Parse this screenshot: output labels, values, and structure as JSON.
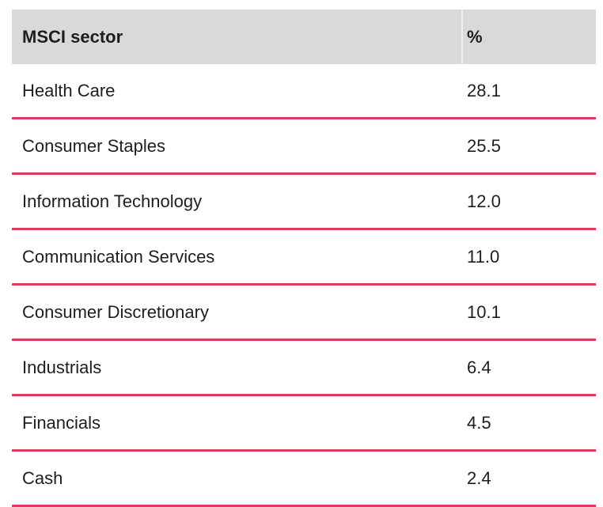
{
  "table": {
    "header": {
      "sector": "MSCI sector",
      "pct": "%"
    },
    "rows": [
      {
        "sector": "Health Care",
        "pct": "28.1"
      },
      {
        "sector": "Consumer Staples",
        "pct": "25.5"
      },
      {
        "sector": "Information Technology",
        "pct": "12.0"
      },
      {
        "sector": "Communication Services",
        "pct": "11.0"
      },
      {
        "sector": "Consumer Discretionary",
        "pct": "10.1"
      },
      {
        "sector": "Industrials",
        "pct": "6.4"
      },
      {
        "sector": "Financials",
        "pct": "4.5"
      },
      {
        "sector": "Cash",
        "pct": "2.4"
      }
    ]
  },
  "colors": {
    "header_background": "#d9d9d9",
    "row_divider": "#e13a5f",
    "header_column_divider": "#f0f0f0",
    "text": "#1e1e1e",
    "page_background": "#ffffff"
  },
  "chart_data": {
    "type": "table",
    "columns": [
      "MSCI sector",
      "%"
    ],
    "categories": [
      "Health Care",
      "Consumer Staples",
      "Information Technology",
      "Communication Services",
      "Consumer Discretionary",
      "Industrials",
      "Financials",
      "Cash"
    ],
    "values": [
      28.1,
      25.5,
      12.0,
      11.0,
      10.1,
      6.4,
      4.5,
      2.4
    ]
  }
}
